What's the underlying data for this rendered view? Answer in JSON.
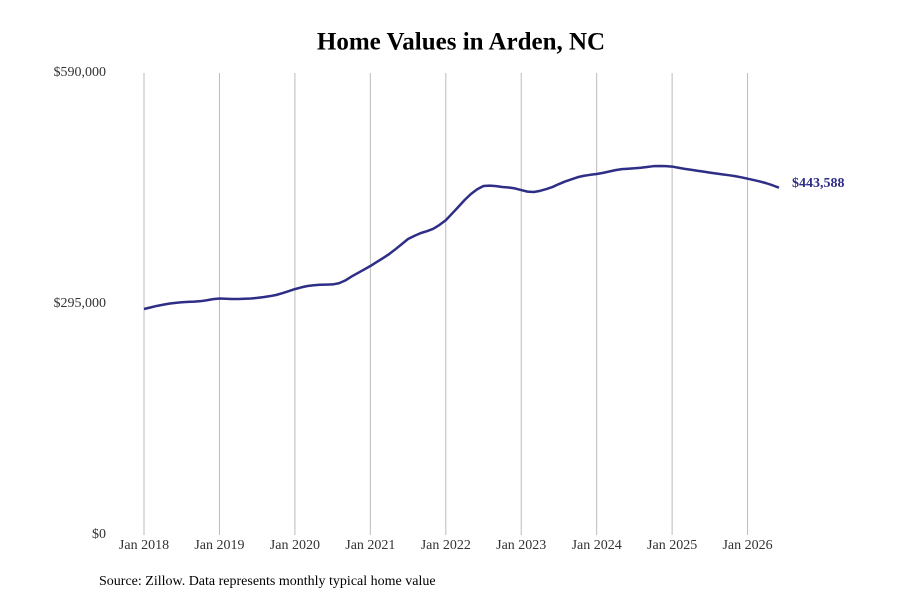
{
  "chart_data": {
    "type": "line",
    "title": "Home Values in Arden, NC",
    "source": "Source: Zillow. Data represents monthly typical home value",
    "x": [
      "2018-01",
      "2018-02",
      "2018-03",
      "2018-04",
      "2018-05",
      "2018-06",
      "2018-07",
      "2018-08",
      "2018-09",
      "2018-10",
      "2018-11",
      "2018-12",
      "2019-01",
      "2019-02",
      "2019-03",
      "2019-04",
      "2019-05",
      "2019-06",
      "2019-07",
      "2019-08",
      "2019-09",
      "2019-10",
      "2019-11",
      "2019-12",
      "2020-01",
      "2020-02",
      "2020-03",
      "2020-04",
      "2020-05",
      "2020-06",
      "2020-07",
      "2020-08",
      "2020-09",
      "2020-10",
      "2020-11",
      "2020-12",
      "2021-01",
      "2021-02",
      "2021-03",
      "2021-04",
      "2021-05",
      "2021-06",
      "2021-07",
      "2021-08",
      "2021-09",
      "2021-10",
      "2021-11",
      "2021-12",
      "2022-01",
      "2022-02",
      "2022-03",
      "2022-04",
      "2022-05",
      "2022-06",
      "2022-07",
      "2022-08",
      "2022-09",
      "2022-10",
      "2022-11",
      "2022-12",
      "2023-01",
      "2023-02",
      "2023-03",
      "2023-04",
      "2023-05",
      "2023-06",
      "2023-07",
      "2023-08",
      "2023-09",
      "2023-10",
      "2023-11",
      "2023-12",
      "2024-01",
      "2024-02",
      "2024-03",
      "2024-04",
      "2024-05",
      "2024-06",
      "2024-07",
      "2024-08",
      "2024-09",
      "2024-10",
      "2024-11",
      "2024-12",
      "2025-01",
      "2025-02",
      "2025-03",
      "2025-04",
      "2025-05",
      "2025-06",
      "2025-07",
      "2025-08",
      "2025-09",
      "2025-10",
      "2025-11",
      "2025-12",
      "2026-01",
      "2026-02",
      "2026-03",
      "2026-04",
      "2026-05",
      "2026-06"
    ],
    "series": [
      {
        "name": "Typical home value",
        "color": "#2e2e86",
        "values": [
          288600,
          290500,
          292500,
          294000,
          295500,
          296500,
          297200,
          297700,
          298000,
          298600,
          299800,
          301200,
          302000,
          301700,
          301400,
          301400,
          301700,
          302000,
          302800,
          303800,
          305000,
          306500,
          308800,
          311300,
          314000,
          316200,
          318000,
          319000,
          319600,
          319800,
          320000,
          321500,
          325000,
          330000,
          334500,
          339000,
          343500,
          348500,
          353500,
          358800,
          365000,
          371500,
          378000,
          382000,
          385500,
          388000,
          391000,
          396000,
          402000,
          410500,
          419000,
          427800,
          435500,
          441500,
          445700,
          446200,
          445500,
          444400,
          443800,
          442600,
          440500,
          438500,
          438000,
          439500,
          441800,
          444500,
          448200,
          451500,
          454300,
          457000,
          458800,
          460000,
          461000,
          462500,
          464200,
          466000,
          467300,
          467800,
          468300,
          469000,
          470000,
          471000,
          471200,
          471000,
          470500,
          469000,
          467600,
          466400,
          465200,
          464000,
          462800,
          461700,
          460500,
          459500,
          458300,
          456800,
          455000,
          453300,
          451400,
          449200,
          446500,
          443588
        ]
      }
    ],
    "annotations": [
      {
        "x": "2026-06",
        "value": 443588,
        "label": "$443,588"
      }
    ],
    "xlim": [
      "2018-01",
      "2026-06"
    ],
    "xticks": [
      {
        "value": "2018-01",
        "label": "Jan 2018"
      },
      {
        "value": "2019-01",
        "label": "Jan 2019"
      },
      {
        "value": "2020-01",
        "label": "Jan 2020"
      },
      {
        "value": "2021-01",
        "label": "Jan 2021"
      },
      {
        "value": "2022-01",
        "label": "Jan 2022"
      },
      {
        "value": "2023-01",
        "label": "Jan 2023"
      },
      {
        "value": "2024-01",
        "label": "Jan 2024"
      },
      {
        "value": "2025-01",
        "label": "Jan 2025"
      },
      {
        "value": "2026-01",
        "label": "Jan 2026"
      }
    ],
    "ylim": [
      0,
      590000
    ],
    "yticks": [
      {
        "value": 0,
        "label": "$0"
      },
      {
        "value": 295000,
        "label": "$295,000"
      },
      {
        "value": 590000,
        "label": "$590,000"
      }
    ],
    "grid": "x"
  }
}
